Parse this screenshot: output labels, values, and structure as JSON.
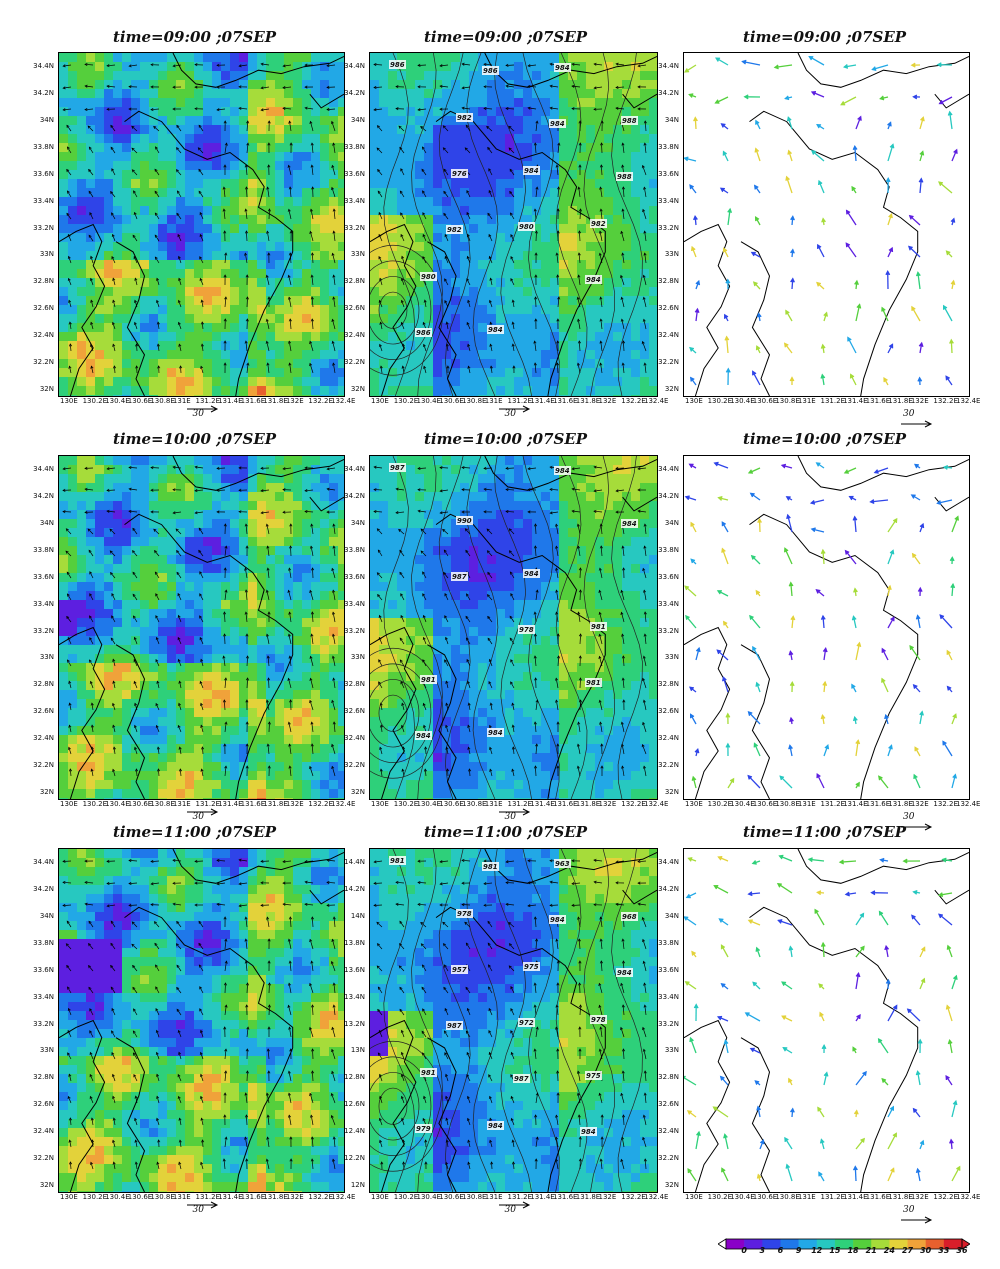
{
  "rows": [
    {
      "time_title": "time=09:00 ;07SEP"
    },
    {
      "time_title": "time=10:00 ;07SEP"
    },
    {
      "time_title": "time=11:00 ;07SEP"
    }
  ],
  "lat_labels": [
    "34.4N",
    "34.2N",
    "34N",
    "33.8N",
    "33.6N",
    "33.4N",
    "33.2N",
    "33N",
    "32.8N",
    "32.6N",
    "32.4N",
    "32.2N",
    "32N"
  ],
  "lat_labels_row3_mid": [
    "14.4N",
    "14.2N",
    "14N",
    "13.8N",
    "13.6N",
    "13.4N",
    "13.2N",
    "13N",
    "12.8N",
    "12.6N",
    "12.4N",
    "12.2N",
    "12N"
  ],
  "lon_labels": [
    "130E",
    "130.2E",
    "130.4E",
    "130.6E",
    "130.8E",
    "131E",
    "131.2E",
    "131.4E",
    "131.6E",
    "131.8E",
    "132E",
    "132.2E",
    "132.4E"
  ],
  "ref_vector_label": "30",
  "pressure_labels": {
    "r1": [
      "986",
      "982",
      "984",
      "982",
      "980",
      "984",
      "984",
      "988",
      "976",
      "980",
      "984",
      "986",
      "986",
      "984",
      "988",
      "982"
    ],
    "r2": [
      "987",
      "990",
      "984",
      "981",
      "981",
      "984",
      "984",
      "984",
      "987",
      "978",
      "981",
      "984"
    ],
    "r3": [
      "981",
      "978",
      "975",
      "978",
      "981",
      "984",
      "963",
      "968",
      "957",
      "972",
      "975",
      "979",
      "981",
      "984",
      "984",
      "987",
      "987",
      "984"
    ]
  },
  "colorbar": {
    "ticks": [
      "0",
      "3",
      "6",
      "9",
      "12",
      "15",
      "18",
      "21",
      "24",
      "27",
      "30",
      "33",
      "36"
    ],
    "colors": [
      "#8a00c8",
      "#5d1fe0",
      "#2f44e8",
      "#1f78ea",
      "#22a8e6",
      "#27c8c0",
      "#2ed07a",
      "#55cf3c",
      "#a6dc3a",
      "#e3d23a",
      "#f0a23a",
      "#e8602e",
      "#d81e2a"
    ]
  }
}
